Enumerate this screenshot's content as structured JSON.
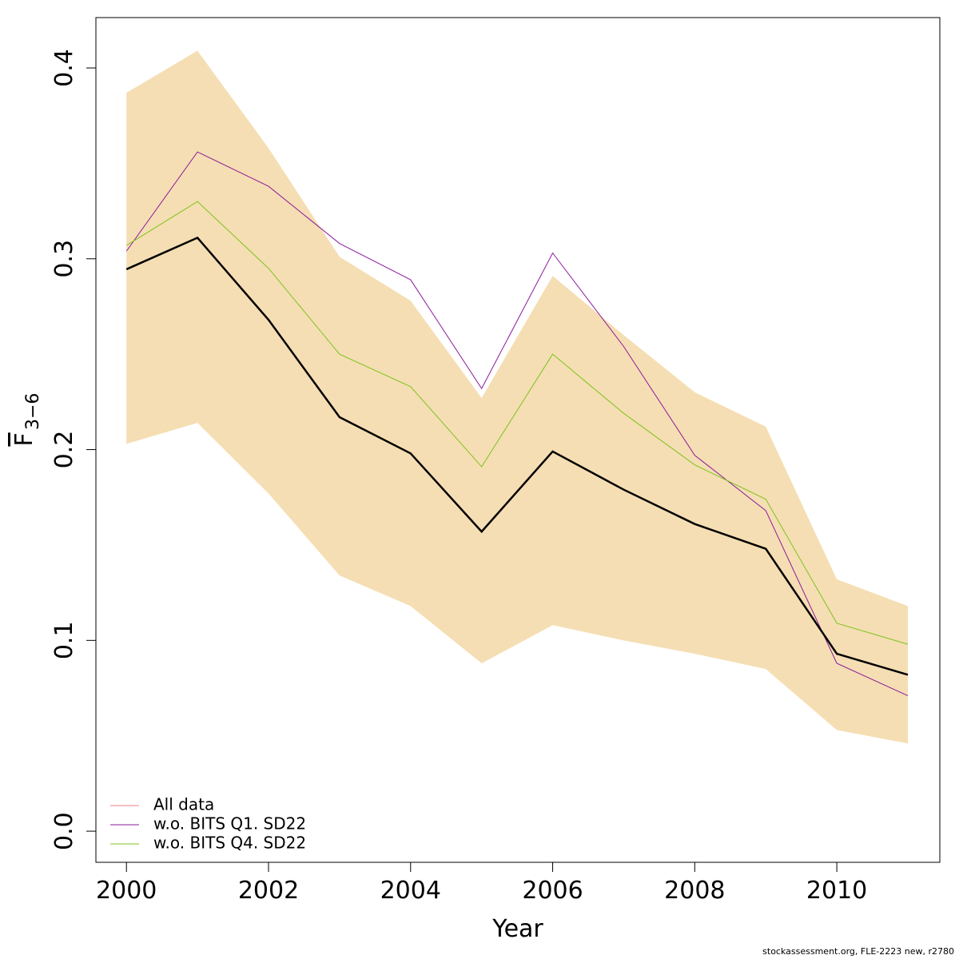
{
  "chart_data": {
    "type": "line",
    "xlabel": "Year",
    "ylabel": {
      "main": "F",
      "subscript": "3−6"
    },
    "footer": "stockassessment.org, FLE-2223 new, r2780",
    "x": [
      2000,
      2001,
      2002,
      2003,
      2004,
      2005,
      2006,
      2007,
      2008,
      2009,
      2010,
      2011
    ],
    "xlim": [
      1999.57,
      2011.45
    ],
    "ylim": [
      -0.0163,
      0.4264
    ],
    "xticks": [
      2000,
      2002,
      2004,
      2006,
      2008,
      2010
    ],
    "yticks": [
      {
        "value": 0,
        "label": "0.0"
      },
      0.1,
      0.2,
      0.3,
      0.4
    ],
    "band": {
      "color": "#f5deb3",
      "upper": [
        0.387,
        0.409,
        0.358,
        0.301,
        0.278,
        0.227,
        0.291,
        0.26,
        0.23,
        0.212,
        0.132,
        0.118
      ],
      "lower": [
        0.203,
        0.214,
        0.177,
        0.134,
        0.118,
        0.088,
        0.108,
        0.1,
        0.093,
        0.085,
        0.053,
        0.046
      ]
    },
    "estimate": {
      "color": "#000000",
      "values": [
        0.2945,
        0.311,
        0.268,
        0.217,
        0.198,
        0.157,
        0.199,
        0.179,
        0.161,
        0.148,
        0.093,
        0.082
      ]
    },
    "series": [
      {
        "name": "All data",
        "color": "#f08080",
        "values": [
          0.2945,
          0.311,
          0.268,
          0.217,
          0.198,
          0.157,
          0.199,
          0.179,
          0.161,
          0.148,
          0.093,
          0.082
        ]
      },
      {
        "name": "w.o. BITS Q1. SD22",
        "color": "#8b1a9b",
        "values": [
          0.304,
          0.356,
          0.338,
          0.308,
          0.289,
          0.232,
          0.303,
          0.254,
          0.197,
          0.168,
          0.088,
          0.071
        ]
      },
      {
        "name": "w.o. BITS Q4. SD22",
        "color": "#7cc41c",
        "values": [
          0.307,
          0.33,
          0.295,
          0.25,
          0.233,
          0.191,
          0.25,
          0.219,
          0.192,
          0.174,
          0.109,
          0.098
        ]
      }
    ],
    "legend": "bottom-left"
  }
}
